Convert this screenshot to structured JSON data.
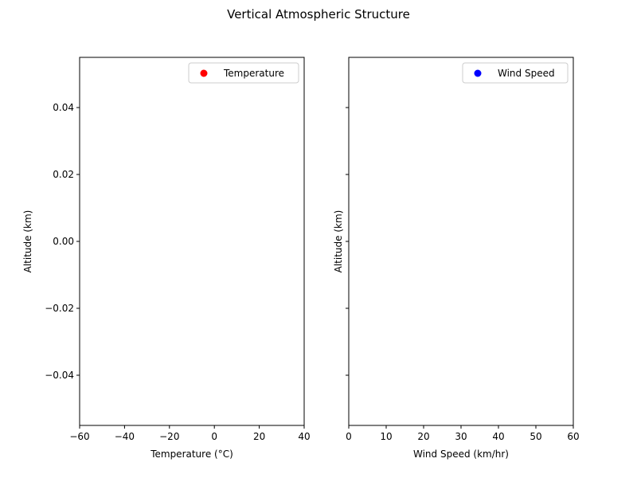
{
  "figure": {
    "title": "Vertical Atmospheric Structure"
  },
  "chart_data": [
    {
      "type": "scatter",
      "xlabel": "Temperature (°C)",
      "ylabel": "Altitude (km)",
      "xlim": [
        -60,
        40
      ],
      "ylim": [
        -0.055,
        0.055
      ],
      "xticks": [
        -60,
        -40,
        -20,
        0,
        20,
        40
      ],
      "xtick_labels": [
        "−60",
        "−40",
        "−20",
        "0",
        "20",
        "40"
      ],
      "yticks": [
        -0.04,
        -0.02,
        0.0,
        0.02,
        0.04
      ],
      "ytick_labels": [
        "−0.04",
        "−0.02",
        "0.00",
        "0.02",
        "0.04"
      ],
      "series": [
        {
          "name": "Temperature",
          "color": "#ff0000",
          "x": [],
          "y": []
        }
      ],
      "legend": "top-right",
      "grid": false
    },
    {
      "type": "scatter",
      "xlabel": "Wind Speed (km/hr)",
      "ylabel": "Altitude (km)",
      "xlim": [
        0,
        60
      ],
      "ylim": [
        -0.055,
        0.055
      ],
      "xticks": [
        0,
        10,
        20,
        30,
        40,
        50,
        60
      ],
      "xtick_labels": [
        "0",
        "10",
        "20",
        "30",
        "40",
        "50",
        "60"
      ],
      "yticks": [
        -0.04,
        -0.02,
        0.0,
        0.02,
        0.04
      ],
      "ytick_labels": [],
      "series": [
        {
          "name": "Wind Speed",
          "color": "#0000ff",
          "x": [],
          "y": []
        }
      ],
      "legend": "top-right",
      "grid": false
    }
  ]
}
